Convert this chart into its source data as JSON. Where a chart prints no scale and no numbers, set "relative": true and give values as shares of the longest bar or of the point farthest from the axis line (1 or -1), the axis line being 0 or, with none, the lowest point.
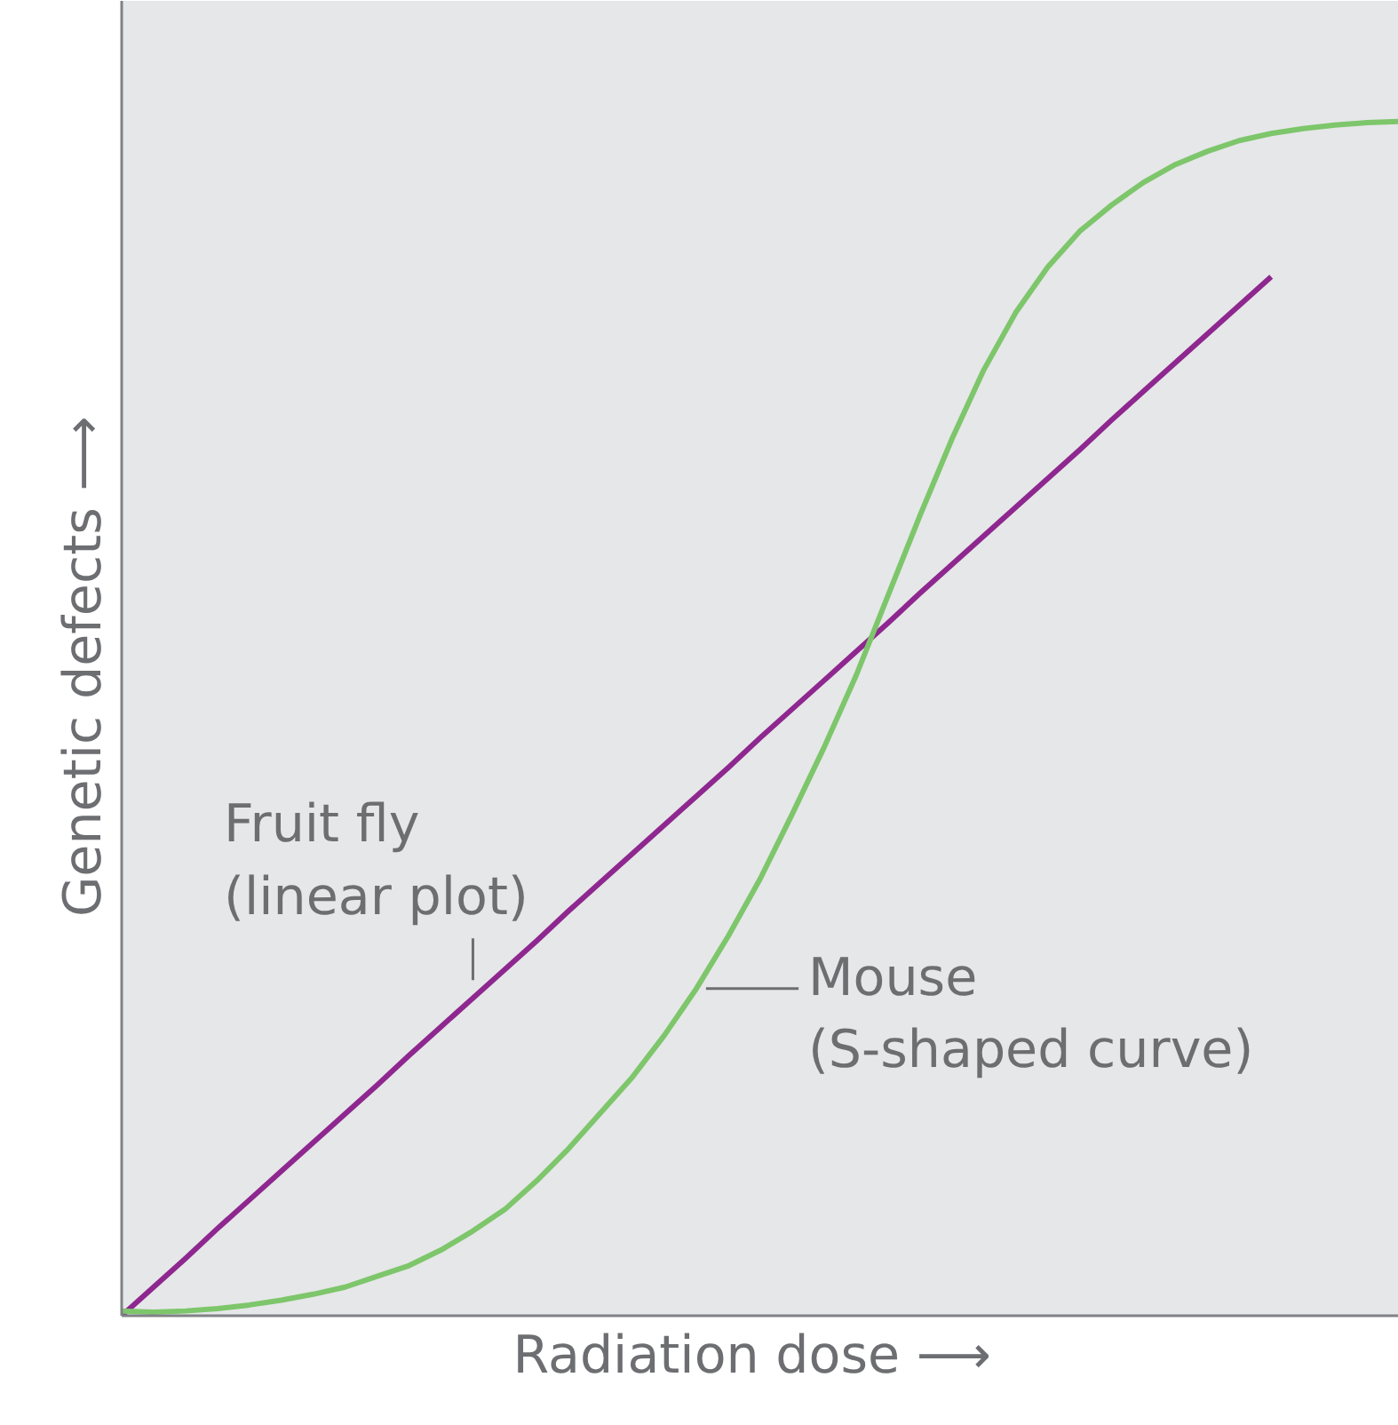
{
  "chart_data": {
    "type": "line",
    "relative": true,
    "xlabel": "Radiation dose  ⟶",
    "ylabel": "Genetic defects  ⟶",
    "categories": [
      null,
      null,
      null,
      null,
      null,
      null,
      null,
      null,
      null,
      null,
      null,
      null,
      null,
      null,
      null,
      null,
      null,
      null,
      null,
      null,
      null,
      null,
      null,
      null,
      null,
      null,
      null,
      null,
      null,
      null,
      null,
      null,
      null,
      null,
      null,
      null,
      null,
      null,
      null,
      null,
      null
    ],
    "series": [
      {
        "name": "Fruit fly\n(linear plot)",
        "color": "#8e278f",
        "values": [
          0,
          0.024,
          0.048,
          0.073,
          0.097,
          0.121,
          0.145,
          0.169,
          0.193,
          0.218,
          0.242,
          0.266,
          0.29,
          0.314,
          0.339,
          0.363,
          0.387,
          0.411,
          0.435,
          0.459,
          0.484,
          0.508,
          0.532,
          0.556,
          0.58,
          0.605,
          0.629,
          0.653,
          0.677,
          0.701,
          0.725,
          0.75,
          0.774,
          0.798,
          0.822,
          0.846,
          0.87,
          null,
          null,
          null,
          null
        ]
      },
      {
        "name": "Mouse\n(S-shaped curve)",
        "color": "#7dc66b",
        "values": [
          0.004,
          0.003,
          0.004,
          0.006,
          0.009,
          0.013,
          0.018,
          0.024,
          0.033,
          0.042,
          0.055,
          0.071,
          0.089,
          0.113,
          0.14,
          0.17,
          0.2,
          0.235,
          0.274,
          0.318,
          0.366,
          0.42,
          0.476,
          0.536,
          0.603,
          0.67,
          0.734,
          0.792,
          0.84,
          0.878,
          0.908,
          0.93,
          0.949,
          0.964,
          0.975,
          0.984,
          0.99,
          0.994,
          0.997,
          0.999,
          1
        ]
      }
    ]
  }
}
